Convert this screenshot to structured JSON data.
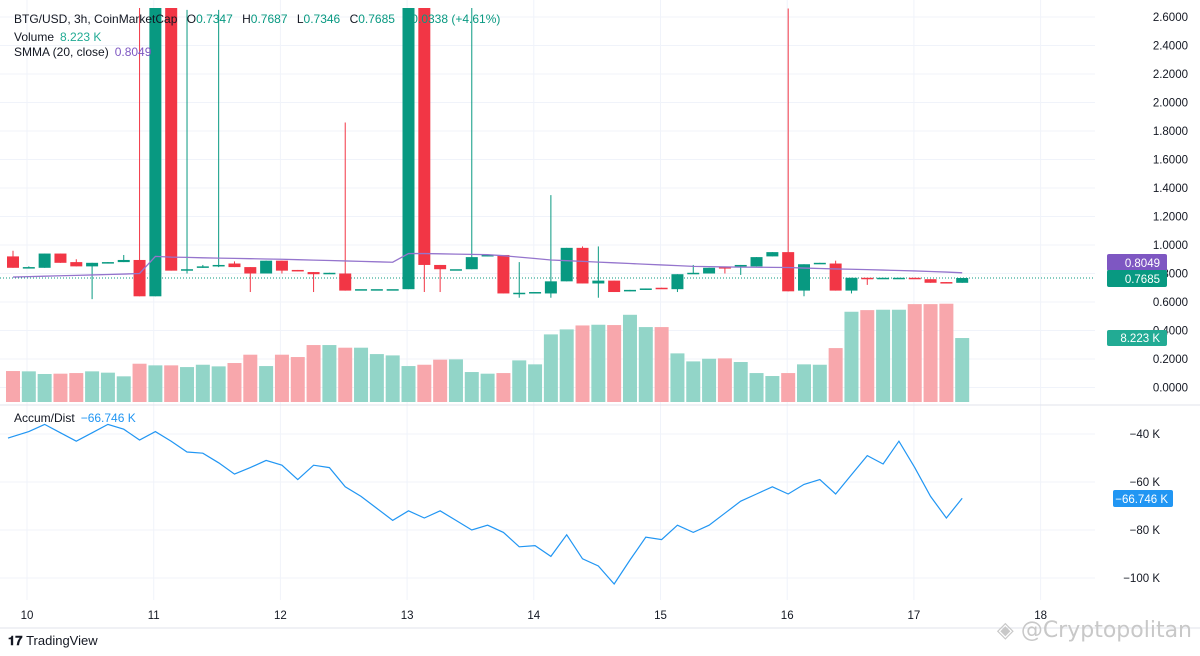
{
  "legend": {
    "symbol": "BTG/USD, 3h, CoinMarketCap",
    "o_label": "O",
    "o": "0.7347",
    "h_label": "H",
    "h": "0.7687",
    "l_label": "L",
    "l": "0.7346",
    "c_label": "C",
    "c": "0.7685",
    "change": "+0.0338 (+4.61%)",
    "volume_label": "Volume",
    "volume_value": "8.223 K",
    "smma_label": "SMMA (20, close)",
    "smma_value": "0.8049",
    "ad_label": "Accum/Dist",
    "ad_value": "−66.746 K"
  },
  "colors": {
    "up": "#089981",
    "down": "#f23645",
    "vol_up": "#92d5c8",
    "vol_down": "#f8a7ac",
    "smma": "#9575cd",
    "smma_tag": "#7e57c2",
    "ad": "#2196f3"
  },
  "price_tags": {
    "smma": "0.8049",
    "close": "0.7685",
    "volume": "8.223 K",
    "ad": "−66.746 K"
  },
  "branding": {
    "tradingview": "TradingView",
    "watermark": "@Cryptopolitan"
  },
  "chart_data": [
    {
      "type": "candlestick",
      "title": "BTG/USD, 3h, CoinMarketCap",
      "x_ticks": [
        "10",
        "11",
        "12",
        "13",
        "14",
        "15",
        "16",
        "17",
        "18"
      ],
      "y_ticks": [
        "0.0000",
        "0.2000",
        "0.4000",
        "0.6000",
        "0.8000",
        "1.0000",
        "1.2000",
        "1.4000",
        "1.6000",
        "1.8000",
        "2.0000",
        "2.2000",
        "2.4000",
        "2.6000"
      ],
      "ylim": [
        0,
        2.65
      ],
      "grid": true,
      "candles_ohlc": [
        [
          0.92,
          0.96,
          0.84,
          0.84
        ],
        [
          0.845,
          0.85,
          0.84,
          0.845
        ],
        [
          0.84,
          0.94,
          0.84,
          0.94
        ],
        [
          0.94,
          0.94,
          0.875,
          0.875
        ],
        [
          0.88,
          0.9,
          0.85,
          0.85
        ],
        [
          0.85,
          0.875,
          0.62,
          0.875
        ],
        [
          0.87,
          0.88,
          0.87,
          0.88
        ],
        [
          0.88,
          0.93,
          0.88,
          0.895
        ],
        [
          0.895,
          2.7,
          0.64,
          0.64
        ],
        [
          0.64,
          3.0,
          0.64,
          3.0
        ],
        [
          3.0,
          3.0,
          0.82,
          0.82
        ],
        [
          0.82,
          2.65,
          0.8,
          0.83
        ],
        [
          0.845,
          0.86,
          0.84,
          0.85
        ],
        [
          0.85,
          2.65,
          0.845,
          0.86
        ],
        [
          0.87,
          0.885,
          0.845,
          0.845
        ],
        [
          0.845,
          0.845,
          0.67,
          0.8
        ],
        [
          0.8,
          0.89,
          0.8,
          0.89
        ],
        [
          0.89,
          0.89,
          0.8,
          0.82
        ],
        [
          0.825,
          0.825,
          0.815,
          0.815
        ],
        [
          0.81,
          0.81,
          0.67,
          0.795
        ],
        [
          0.8,
          0.805,
          0.8,
          0.805
        ],
        [
          0.8,
          1.86,
          0.68,
          0.68
        ],
        [
          0.69,
          0.69,
          0.69,
          0.69
        ],
        [
          0.69,
          0.69,
          0.69,
          0.69
        ],
        [
          0.69,
          0.69,
          0.69,
          0.69
        ],
        [
          0.69,
          3.0,
          0.69,
          3.0
        ],
        [
          3.0,
          3.0,
          0.67,
          0.86
        ],
        [
          0.86,
          0.86,
          0.67,
          0.83
        ],
        [
          0.83,
          0.83,
          0.83,
          0.83
        ],
        [
          0.83,
          2.7,
          0.83,
          0.915
        ],
        [
          0.925,
          0.93,
          0.92,
          0.93
        ],
        [
          0.93,
          0.93,
          0.66,
          0.66
        ],
        [
          0.66,
          0.88,
          0.63,
          0.665
        ],
        [
          0.665,
          0.67,
          0.66,
          0.67
        ],
        [
          0.66,
          1.35,
          0.63,
          0.745
        ],
        [
          0.745,
          0.98,
          0.745,
          0.98
        ],
        [
          0.98,
          0.99,
          0.73,
          0.73
        ],
        [
          0.73,
          0.99,
          0.63,
          0.75
        ],
        [
          0.75,
          0.75,
          0.67,
          0.67
        ],
        [
          0.675,
          0.685,
          0.675,
          0.685
        ],
        [
          0.685,
          0.695,
          0.685,
          0.695
        ],
        [
          0.7,
          0.7,
          0.695,
          0.695
        ],
        [
          0.69,
          0.795,
          0.67,
          0.795
        ],
        [
          0.8,
          0.86,
          0.8,
          0.805
        ],
        [
          0.8,
          0.84,
          0.8,
          0.84
        ],
        [
          0.845,
          0.845,
          0.8,
          0.84
        ],
        [
          0.85,
          0.86,
          0.79,
          0.86
        ],
        [
          0.85,
          0.915,
          0.85,
          0.915
        ],
        [
          0.92,
          0.95,
          0.92,
          0.95
        ],
        [
          0.95,
          2.66,
          0.675,
          0.675
        ],
        [
          0.68,
          0.865,
          0.64,
          0.865
        ],
        [
          0.87,
          0.875,
          0.87,
          0.875
        ],
        [
          0.87,
          0.89,
          0.68,
          0.68
        ],
        [
          0.68,
          0.77,
          0.66,
          0.77
        ],
        [
          0.77,
          0.77,
          0.72,
          0.765
        ],
        [
          0.765,
          0.77,
          0.765,
          0.77
        ],
        [
          0.765,
          0.77,
          0.765,
          0.77
        ],
        [
          0.77,
          0.77,
          0.765,
          0.765
        ],
        [
          0.76,
          0.76,
          0.735,
          0.735
        ],
        [
          0.74,
          0.74,
          0.735,
          0.735
        ],
        [
          0.7347,
          0.7687,
          0.7346,
          0.7685
        ]
      ],
      "volume_k": [
        3.98,
        3.94,
        3.6,
        3.64,
        3.72,
        3.94,
        3.77,
        3.3,
        4.92,
        4.71,
        4.71,
        4.49,
        4.79,
        4.58,
        5.01,
        6.08,
        4.62,
        6.08,
        5.78,
        7.32,
        7.32,
        6.98,
        6.98,
        6.16,
        5.99,
        4.62,
        4.79,
        5.44,
        5.48,
        3.85,
        3.64,
        3.72,
        5.35,
        4.84,
        8.69,
        9.33,
        9.84,
        9.93,
        9.89,
        11.21,
        9.63,
        9.63,
        6.25,
        5.22,
        5.56,
        5.61,
        5.14,
        3.72,
        3.34,
        3.72,
        4.84,
        4.79,
        6.93,
        11.6,
        11.81,
        11.86,
        11.86,
        12.58,
        12.58,
        12.63,
        8.223
      ],
      "smma_20": [
        0.775,
        0.778,
        0.781,
        0.784,
        0.787,
        0.79,
        0.793,
        0.796,
        0.8,
        0.92,
        0.915,
        0.913,
        0.91,
        0.908,
        0.906,
        0.904,
        0.902,
        0.9,
        0.897,
        0.894,
        0.891,
        0.888,
        0.885,
        0.882,
        0.879,
        0.94,
        0.94,
        0.938,
        0.936,
        0.934,
        0.932,
        0.925,
        0.915,
        0.905,
        0.895,
        0.89,
        0.885,
        0.88,
        0.875,
        0.87,
        0.865,
        0.86,
        0.855,
        0.85,
        0.848,
        0.846,
        0.845,
        0.844,
        0.843,
        0.842,
        0.838,
        0.835,
        0.832,
        0.83,
        0.827,
        0.824,
        0.821,
        0.818,
        0.814,
        0.81,
        0.8049
      ]
    },
    {
      "type": "line",
      "name": "Accum/Dist",
      "y_ticks": [
        "−40 K",
        "−60 K",
        "−80 K",
        "−100 K"
      ],
      "ylim": [
        -105,
        -32
      ],
      "values_k": [
        -41.7,
        -39,
        -36,
        -39.5,
        -43,
        -39.5,
        -36,
        -38,
        -42.5,
        -39,
        -43,
        -47.5,
        -48,
        -52,
        -56.7,
        -54,
        -51,
        -53,
        -59,
        -53,
        -54,
        -62,
        -66,
        -71,
        -76,
        -72,
        -75,
        -72,
        -76,
        -80,
        -78,
        -81,
        -87,
        -86.5,
        -91,
        -82,
        -92,
        -95,
        -102.5,
        -92.5,
        -83,
        -84,
        -78,
        -81,
        -78,
        -73,
        -68,
        -65,
        -62,
        -65,
        -61,
        -59,
        -65,
        -57,
        -49,
        -52.5,
        -43,
        -54,
        -66,
        -75,
        -66.746
      ]
    }
  ]
}
